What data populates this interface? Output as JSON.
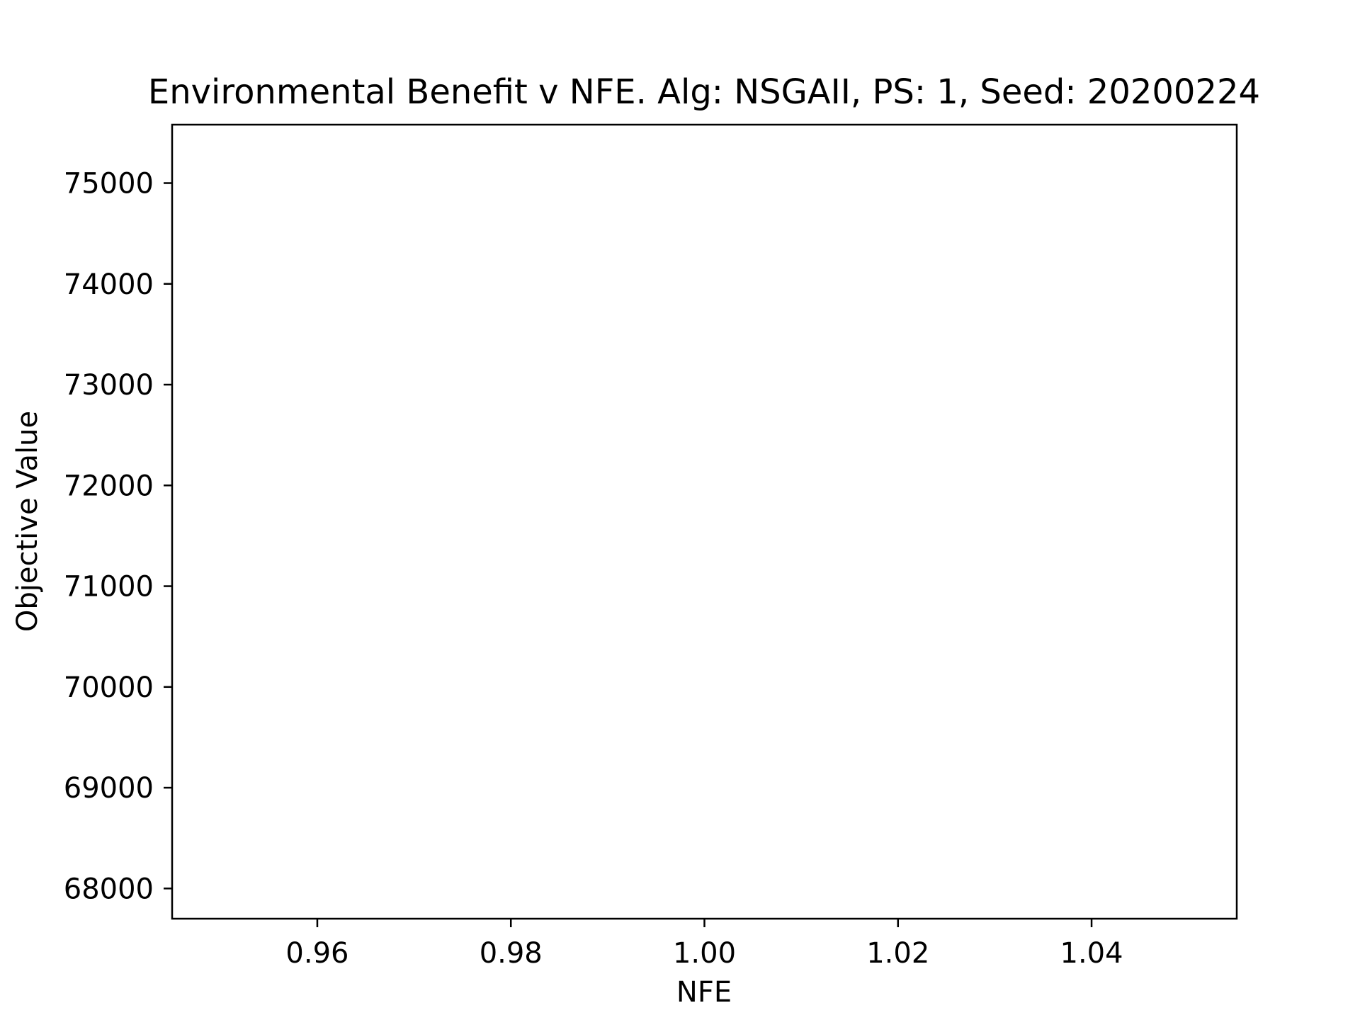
{
  "chart_data": {
    "type": "line",
    "title": "Environmental Benefit v NFE. Alg: NSGAII, PS: 1, Seed: 20200224",
    "xlabel": "NFE",
    "ylabel": "Objective Value",
    "xlim": [
      0.945,
      1.055
    ],
    "ylim": [
      67700,
      75580
    ],
    "x_ticks": [
      0.96,
      0.98,
      1.0,
      1.02,
      1.04
    ],
    "x_tick_labels": [
      "0.96",
      "0.98",
      "1.00",
      "1.02",
      "1.04"
    ],
    "y_ticks": [
      68000,
      69000,
      70000,
      71000,
      72000,
      73000,
      74000,
      75000
    ],
    "y_tick_labels": [
      "68000",
      "69000",
      "70000",
      "71000",
      "72000",
      "73000",
      "74000",
      "75000"
    ],
    "series": [],
    "grid": false,
    "legend": "none"
  }
}
